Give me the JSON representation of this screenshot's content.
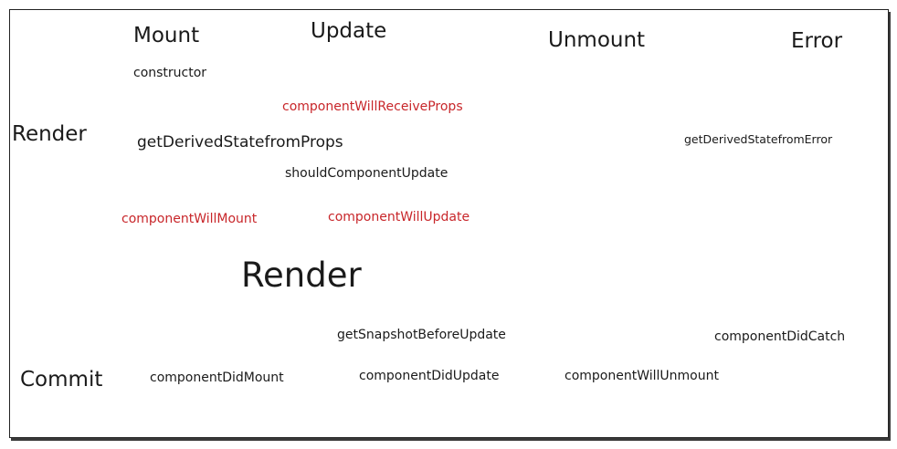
{
  "columns": {
    "mount": "Mount",
    "update": "Update",
    "unmount": "Unmount",
    "error": "Error"
  },
  "phases": {
    "render_label": "Render",
    "commit_label": "Commit",
    "render_center": "Render"
  },
  "methods": {
    "constructor": "constructor",
    "componentWillReceiveProps": "componentWillReceiveProps",
    "getDerivedStateFromProps": "getDerivedStatefromProps",
    "getDerivedStateFromError": "getDerivedStatefromError",
    "shouldComponentUpdate": "shouldComponentUpdate",
    "componentWillMount": "componentWillMount",
    "componentWillUpdate": "componentWillUpdate",
    "getSnapshotBeforeUpdate": "getSnapshotBeforeUpdate",
    "componentDidCatch": "componentDidCatch",
    "componentDidMount": "componentDidMount",
    "componentDidUpdate": "componentDidUpdate",
    "componentWillUnmount": "componentWillUnmount"
  },
  "colors": {
    "deprecated": "#c8262a",
    "text": "#1a1a1a"
  }
}
